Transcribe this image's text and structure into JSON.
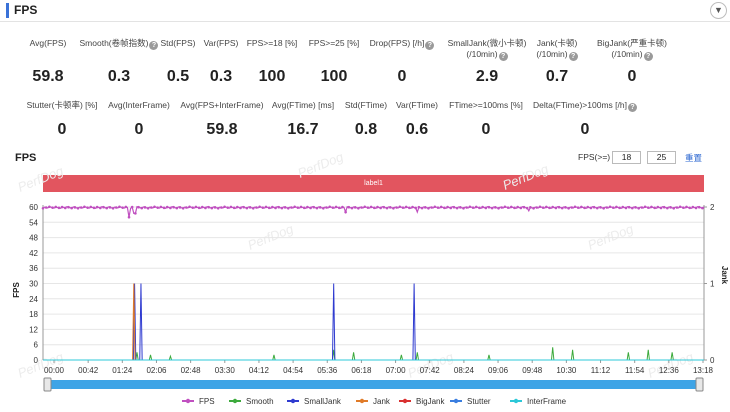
{
  "panel": {
    "title": "FPS",
    "collapse_icon": "chevron-down-icon"
  },
  "metrics_row1": [
    {
      "label": "Avg(FPS)",
      "label2": "",
      "help": false,
      "value": "59.8"
    },
    {
      "label": "Smooth(卷帧指数)",
      "label2": "",
      "help": true,
      "value": "0.3"
    },
    {
      "label": "Std(FPS)",
      "label2": "",
      "help": false,
      "value": "0.5"
    },
    {
      "label": "Var(FPS)",
      "label2": "",
      "help": false,
      "value": "0.3"
    },
    {
      "label": "FPS>=18 [%]",
      "label2": "",
      "help": false,
      "value": "100"
    },
    {
      "label": "FPS>=25 [%]",
      "label2": "",
      "help": false,
      "value": "100"
    },
    {
      "label": "Drop(FPS) [/h]",
      "label2": "",
      "help": true,
      "value": "0"
    },
    {
      "label": "SmallJank(微小卡顿)",
      "label2": "(/10min)",
      "help": true,
      "value": "2.9"
    },
    {
      "label": "Jank(卡顿)",
      "label2": "(/10min)",
      "help": true,
      "value": "0.7"
    },
    {
      "label": "BigJank(严重卡顿)",
      "label2": "(/10min)",
      "help": true,
      "value": "0"
    }
  ],
  "metrics_row2": [
    {
      "label": "Stutter(卡顿率) [%]",
      "help": false,
      "value": "0"
    },
    {
      "label": "Avg(InterFrame)",
      "help": false,
      "value": "0"
    },
    {
      "label": "Avg(FPS+InterFrame)",
      "help": false,
      "value": "59.8"
    },
    {
      "label": "Avg(FTime) [ms]",
      "help": false,
      "value": "16.7"
    },
    {
      "label": "Std(FTime)",
      "help": false,
      "value": "0.8"
    },
    {
      "label": "Var(FTime)",
      "help": false,
      "value": "0.6"
    },
    {
      "label": "FTime>=100ms [%]",
      "help": false,
      "value": "0"
    },
    {
      "label": "Delta(FTime)>100ms [/h]",
      "help": true,
      "value": "0"
    }
  ],
  "chart_section": {
    "title": "FPS",
    "threshold_label": "FPS(>=)",
    "threshold_low": "18",
    "threshold_high": "25",
    "reset_label": "重置",
    "band_label": "label1",
    "watermark": "PerfDog"
  },
  "colors": {
    "fps": "#c050c0",
    "smooth": "#3daa3d",
    "smalljank": "#2f3bd0",
    "jank": "#e07b28",
    "bigjank": "#d93030",
    "stutter": "#3a7ee0",
    "interframe": "#2cc8d8",
    "band": "#e2555f",
    "link": "#2a66d0"
  },
  "chart_data": {
    "type": "line",
    "title": "",
    "ylabel": "FPS",
    "y2label": "Jank",
    "ylim": [
      0,
      60
    ],
    "y_ticks": [
      0,
      6,
      12,
      18,
      24,
      30,
      36,
      42,
      48,
      54,
      60
    ],
    "y2lim": [
      0,
      2
    ],
    "y2_ticks": [
      0,
      1,
      2
    ],
    "x_ticks": [
      "00:00",
      "00:42",
      "01:24",
      "02:06",
      "02:48",
      "03:30",
      "04:12",
      "04:54",
      "05:36",
      "06:18",
      "07:00",
      "07:42",
      "08:24",
      "09:06",
      "09:48",
      "10:30",
      "11:12",
      "11:54",
      "12:36",
      "13:18"
    ],
    "xlim_seconds": [
      0,
      830
    ],
    "legend_position": "bottom",
    "series": [
      {
        "name": "FPS",
        "axis": "left",
        "baseline": 59.8,
        "dips": [
          [
            108,
            56
          ],
          [
            115,
            57.5
          ],
          [
            380,
            58
          ],
          [
            470,
            58
          ],
          [
            610,
            58.5
          ]
        ]
      },
      {
        "name": "Smooth",
        "axis": "left",
        "baseline": 0,
        "spikes": [
          [
            118,
            3
          ],
          [
            135,
            2
          ],
          [
            160,
            1.5
          ],
          [
            290,
            2
          ],
          [
            365,
            4
          ],
          [
            390,
            3
          ],
          [
            450,
            2
          ],
          [
            470,
            3
          ],
          [
            560,
            2
          ],
          [
            640,
            5
          ],
          [
            665,
            4
          ],
          [
            735,
            3
          ],
          [
            760,
            4
          ],
          [
            790,
            3
          ]
        ]
      },
      {
        "name": "SmallJank",
        "axis": "right",
        "baseline": 0,
        "spikes": [
          [
            115,
            1
          ],
          [
            123,
            1
          ],
          [
            365,
            1
          ],
          [
            466,
            1
          ]
        ]
      },
      {
        "name": "Jank",
        "axis": "right",
        "baseline": 0,
        "spikes": [
          [
            114,
            1
          ]
        ]
      },
      {
        "name": "BigJank",
        "axis": "right",
        "baseline": 0,
        "spikes": []
      },
      {
        "name": "Stutter",
        "axis": "right",
        "baseline": 0,
        "spikes": []
      },
      {
        "name": "InterFrame",
        "axis": "left",
        "baseline": 0,
        "spikes": []
      }
    ]
  }
}
